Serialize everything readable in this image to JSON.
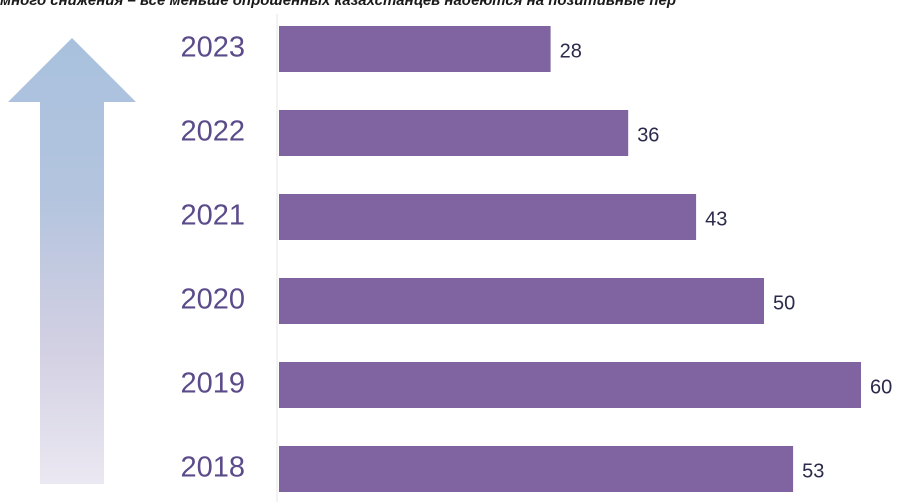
{
  "header": {
    "caption_fragment": "много снижения – все меньше опрошенных казахстанцев надеются на позитивные пер"
  },
  "colors": {
    "bar": "#8064a2",
    "year_text": "#5b4b8a",
    "value_text": "#2b2a4a",
    "arrow_top": "#a9c1de",
    "arrow_bottom": "#ebe8f2"
  },
  "decor": {
    "arrow_icon": "up-arrow-icon"
  },
  "chart_data": {
    "type": "bar",
    "orientation": "horizontal",
    "categories": [
      "2023",
      "2022",
      "2021",
      "2020",
      "2019",
      "2018"
    ],
    "values": [
      28,
      36,
      43,
      50,
      60,
      53
    ],
    "xlim": [
      0,
      60
    ],
    "grid": false,
    "legend": "none",
    "title": "",
    "xlabel": "",
    "ylabel": ""
  }
}
